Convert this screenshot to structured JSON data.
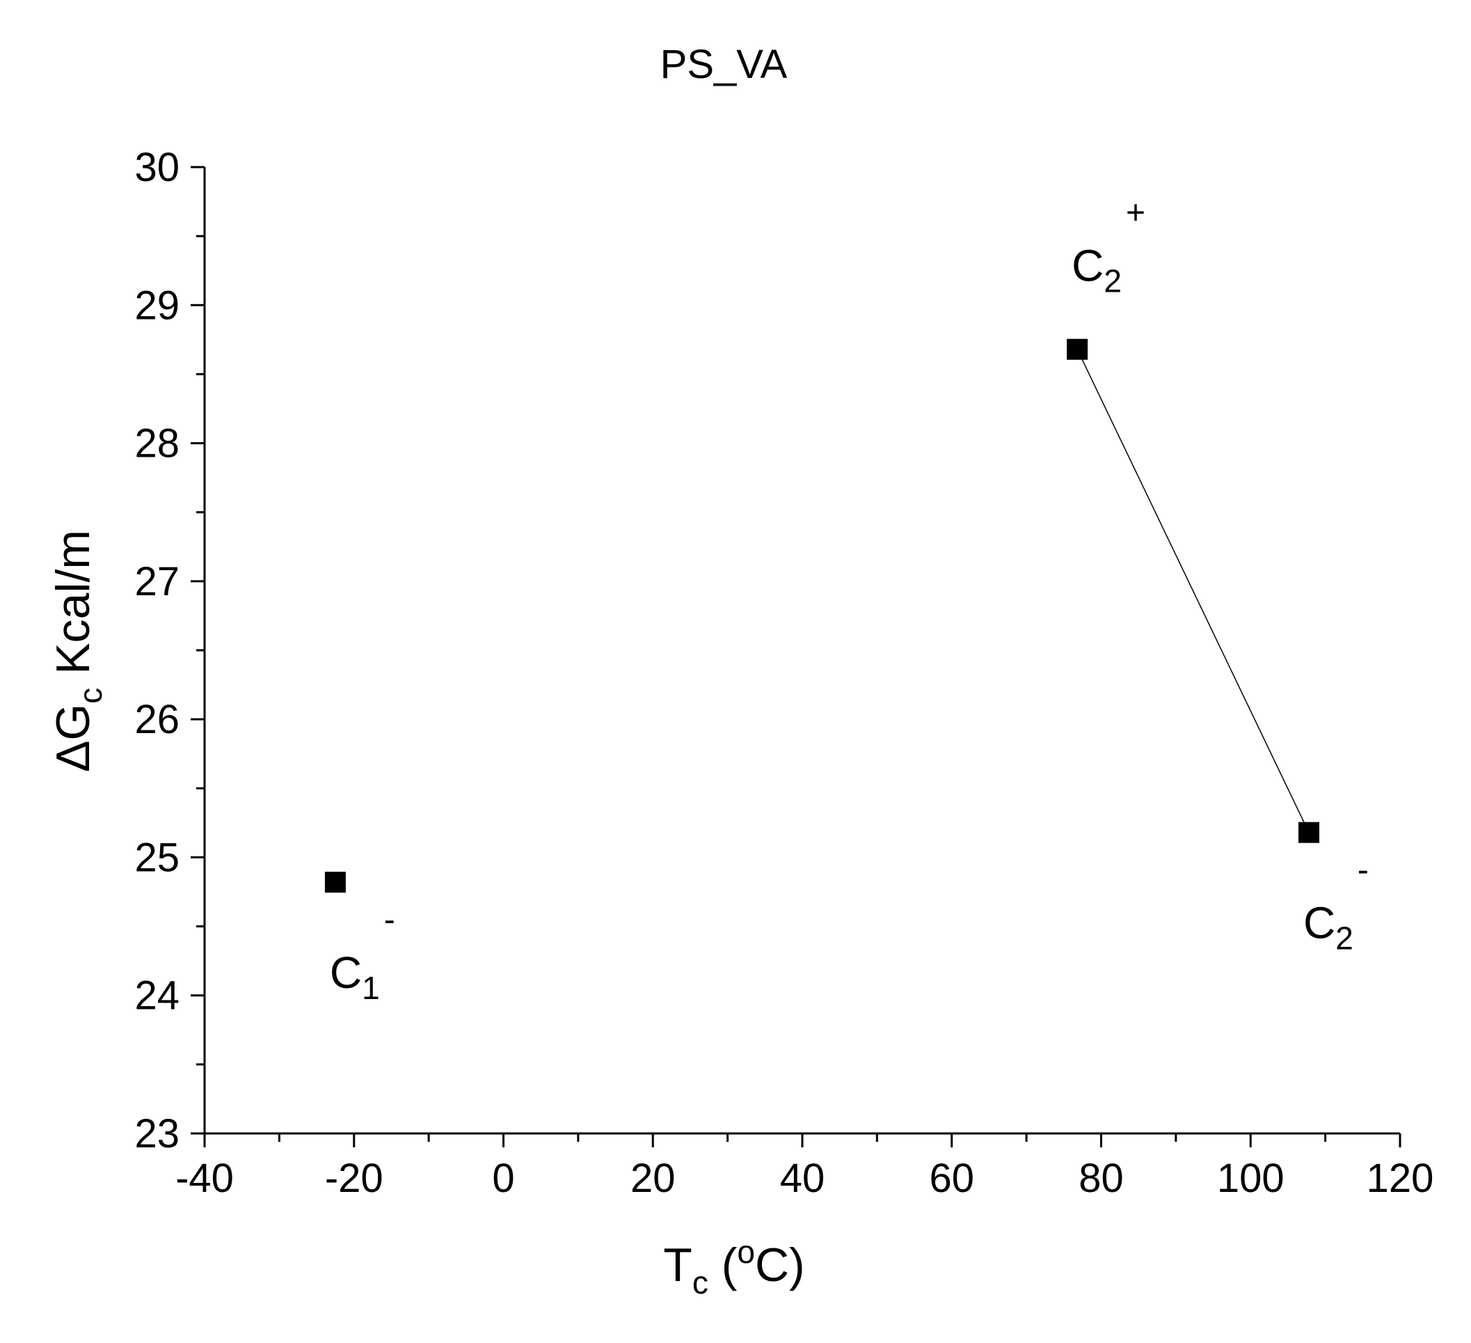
{
  "chart_data": {
    "type": "scatter",
    "title": "PS_VA",
    "xlabel": {
      "main": "T",
      "sub": "c",
      "tail_open": " (",
      "degree": "o",
      "tail_close": "C)"
    },
    "ylabel": {
      "main": "ΔG",
      "sub": "c",
      "tail": " Kcal/m"
    },
    "xlim": [
      -40,
      120
    ],
    "ylim": [
      23,
      30
    ],
    "xticks": [
      -40,
      -20,
      0,
      20,
      40,
      60,
      80,
      100,
      120
    ],
    "yticks": [
      23,
      24,
      25,
      26,
      27,
      28,
      29,
      30
    ],
    "points": [
      {
        "x": -22.5,
        "y": 24.82,
        "label": {
          "main": "C",
          "sub": "1",
          "sup": "-"
        },
        "label_pos": "below"
      },
      {
        "x": 76.8,
        "y": 28.68,
        "label": {
          "main": "C",
          "sub": "2",
          "sup": "+"
        },
        "label_pos": "above"
      },
      {
        "x": 107.8,
        "y": 25.18,
        "label": {
          "main": "C",
          "sub": "2",
          "sup": "-"
        },
        "label_pos": "below"
      }
    ],
    "connecting_line": [
      [
        76.8,
        28.68
      ],
      [
        107.8,
        25.18
      ]
    ],
    "marker": "filled-square",
    "color": "#000000",
    "grid": false
  }
}
